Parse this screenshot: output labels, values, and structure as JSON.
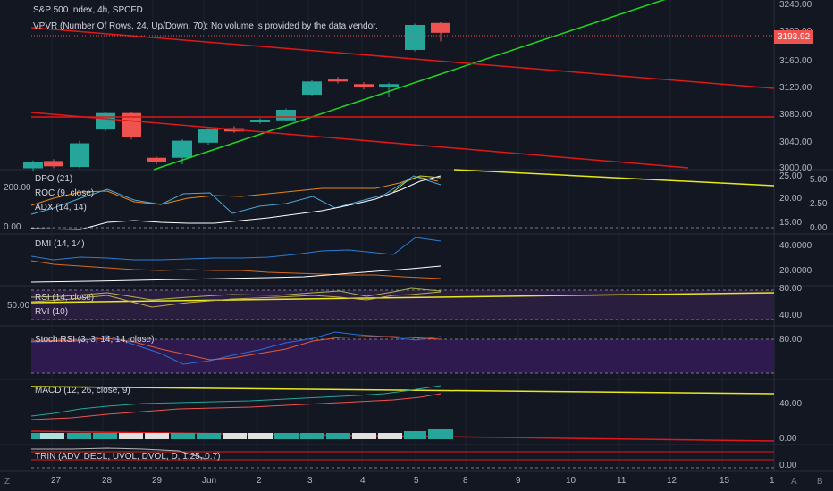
{
  "header": {
    "symbol": "S&P 500 Index, 4h, SPCFD",
    "vpvr": "VPVR (Number Of Rows, 24, Up/Down, 70): No volume is provided by the data vendor."
  },
  "price_axis": [
    "3240.00",
    "3200.00",
    "3160.00",
    "3120.00",
    "3080.00",
    "3040.00",
    "3000.00"
  ],
  "last_price": "3193.92",
  "indicators": {
    "dpo": "DPO (21)",
    "roc": "ROC (9, close)",
    "adx": "ADX (14, 14)",
    "dmi": "DMI (14, 14)",
    "rsi": "RSI (14, close)",
    "rvi": "RVI (10)",
    "stoch": "Stoch RSI (3, 3, 14, 14, close)",
    "macd": "MACD (12, 26, close, 9)",
    "trin": "TRIN (ADV, DECL, UVOL, DVOL, D, 1.25, 0.7)"
  },
  "pane_axes": {
    "p1_left": [
      "200.00",
      "0.00"
    ],
    "p1_right": [
      "25.00",
      "20.00",
      "15.00"
    ],
    "p1_right2": [
      "5.00",
      "2.50",
      "0.00"
    ],
    "p2": [
      "40.0000",
      "20.0000"
    ],
    "p3_left": "50.00",
    "p3": [
      "80.00",
      "40.00"
    ],
    "p4": "80.00",
    "p5": [
      "40.00",
      "0.00"
    ],
    "p6": "0.00"
  },
  "time_axis": [
    "27",
    "28",
    "29",
    "Jun",
    "2",
    "3",
    "4",
    "5",
    "8",
    "9",
    "10",
    "11",
    "12",
    "15",
    "1"
  ],
  "bottom": {
    "left": "Z",
    "right_a": "A",
    "right_b": "B"
  },
  "colors": {
    "up": "#26a69a",
    "down": "#ef5350",
    "bg": "#131722",
    "grid": "#1e222d",
    "trend_green": "#1fd51f",
    "trend_red": "#e01818",
    "yellow": "#e8e81e"
  },
  "chart_data": {
    "type": "candlestick",
    "candles": [
      {
        "o": 2998,
        "c": 3008,
        "h": 3010,
        "l": 2994
      },
      {
        "o": 3009,
        "c": 3001,
        "h": 3012,
        "l": 2998
      },
      {
        "o": 3000,
        "c": 3036,
        "h": 3040,
        "l": 2998
      },
      {
        "o": 3057,
        "c": 3082,
        "h": 3084,
        "l": 3054
      },
      {
        "o": 3082,
        "c": 3046,
        "h": 3084,
        "l": 3042
      },
      {
        "o": 3014,
        "c": 3008,
        "h": 3016,
        "l": 3004
      },
      {
        "o": 3014,
        "c": 3040,
        "h": 3042,
        "l": 3004
      },
      {
        "o": 3037,
        "c": 3057,
        "h": 3059,
        "l": 3034
      },
      {
        "o": 3059,
        "c": 3054,
        "h": 3062,
        "l": 3052
      },
      {
        "o": 3068,
        "c": 3072,
        "h": 3074,
        "l": 3066
      },
      {
        "o": 3071,
        "c": 3087,
        "h": 3089,
        "l": 3070
      },
      {
        "o": 3110,
        "c": 3130,
        "h": 3132,
        "l": 3108
      },
      {
        "o": 3133,
        "c": 3130,
        "h": 3137,
        "l": 3127
      },
      {
        "o": 3126,
        "c": 3121,
        "h": 3129,
        "l": 3118
      },
      {
        "o": 3121,
        "c": 3126,
        "h": 3128,
        "l": 3106
      },
      {
        "o": 3178,
        "c": 3216,
        "h": 3218,
        "l": 3176
      },
      {
        "o": 3219,
        "c": 3204,
        "h": 3220,
        "l": 3191
      }
    ],
    "ylim": [
      2996,
      3254
    ]
  }
}
